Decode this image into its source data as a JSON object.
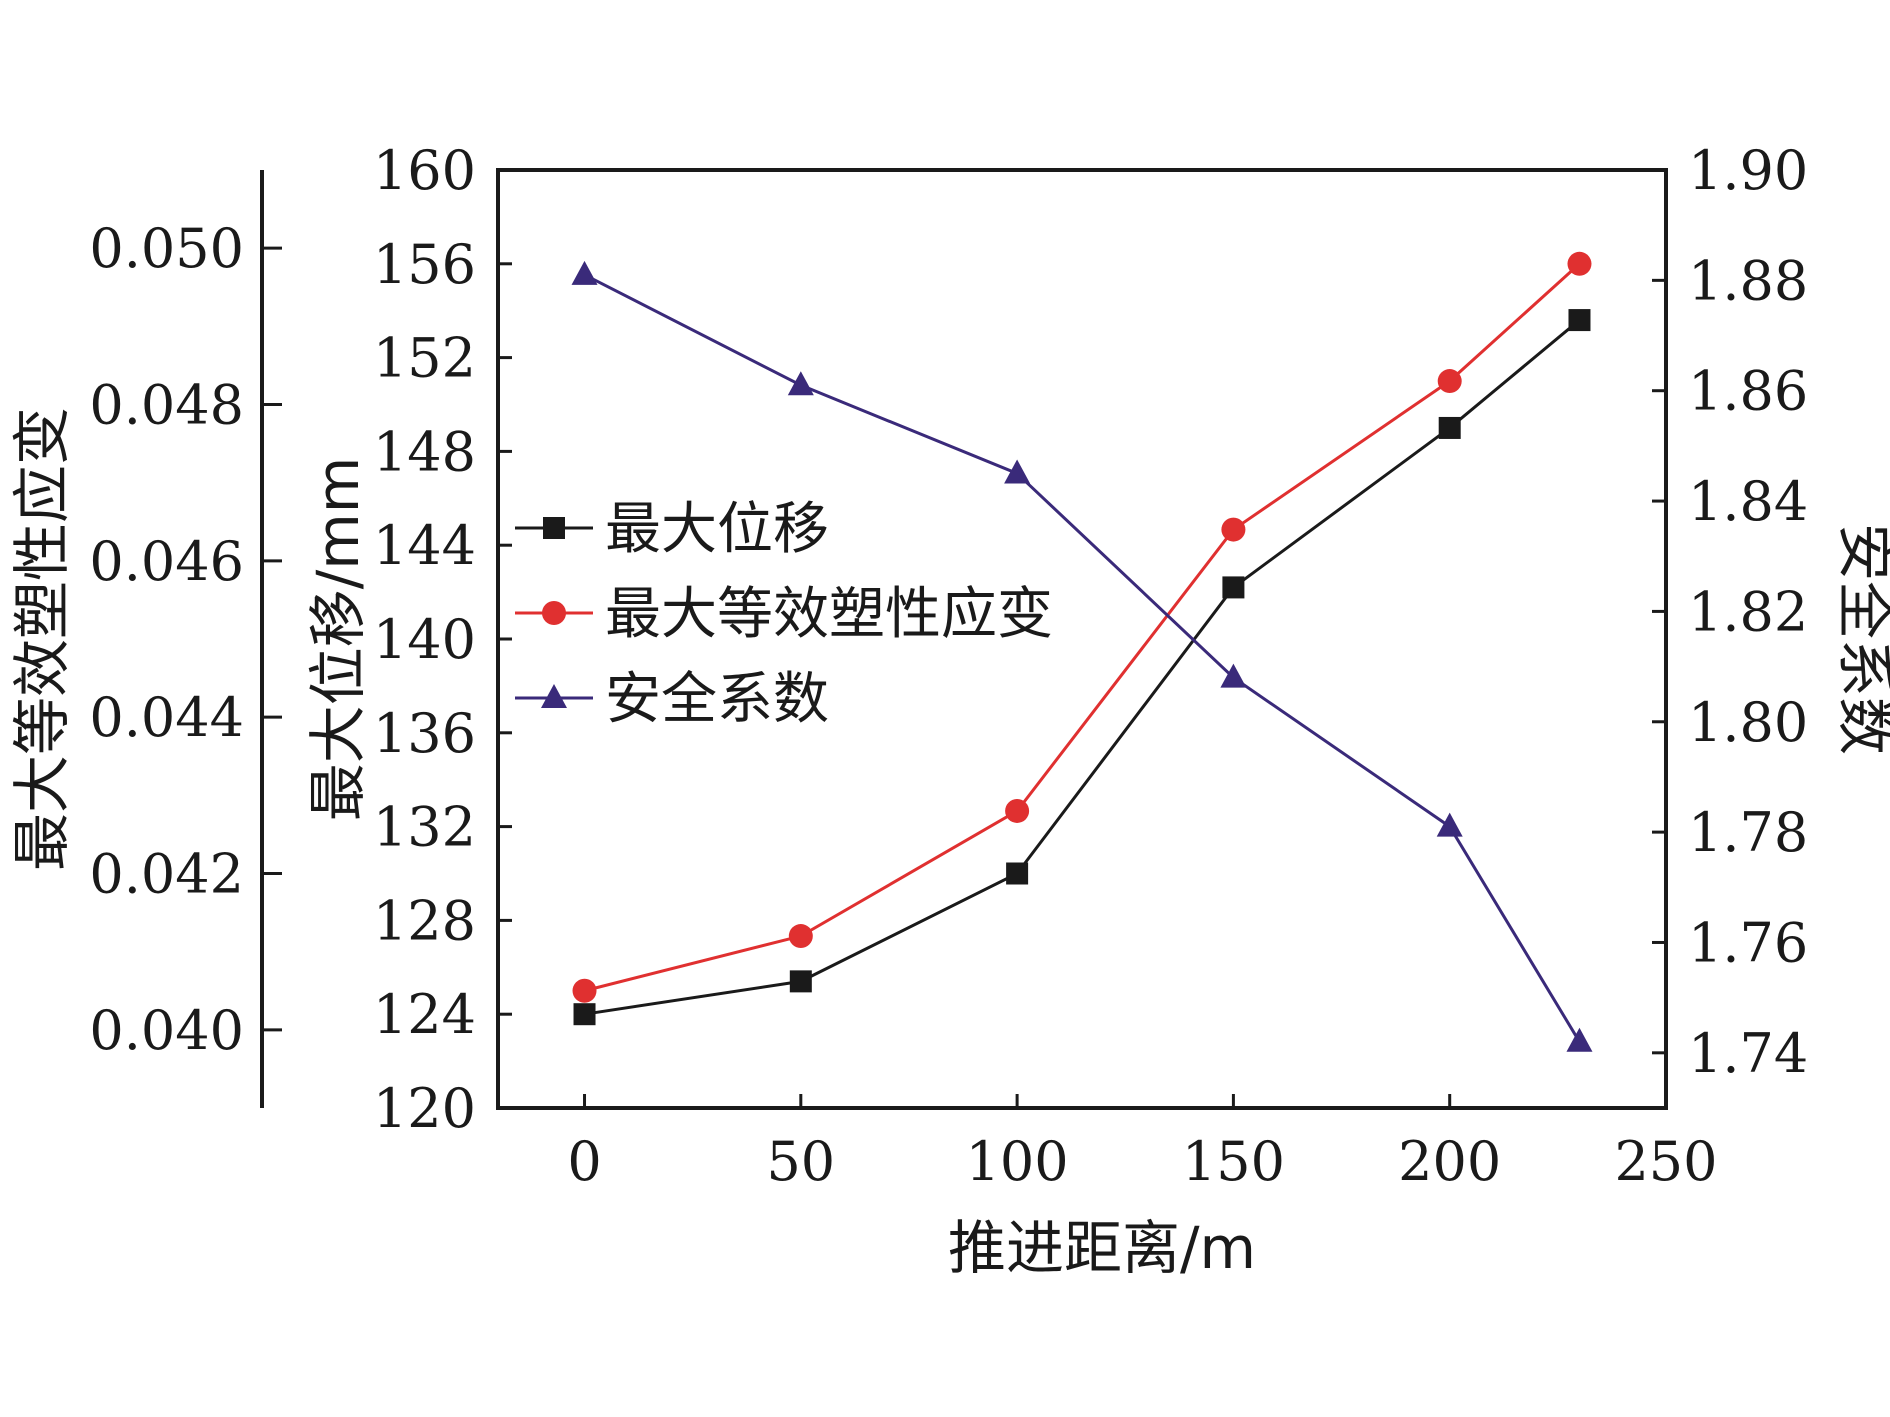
{
  "chart_data": {
    "type": "line",
    "x": [
      0,
      50,
      100,
      150,
      200,
      230
    ],
    "xlabel": "推进距离/m",
    "xlim": [
      -20,
      250
    ],
    "xticks": [
      0,
      50,
      100,
      150,
      200,
      250
    ],
    "axes": {
      "left_outer": {
        "label": "最大等效塑性应变",
        "range": [
          0.039,
          0.051
        ],
        "ticks": [
          "0.040",
          "0.042",
          "0.044",
          "0.046",
          "0.048",
          "0.050"
        ]
      },
      "left_inner": {
        "label": "最大位移/mm",
        "range": [
          120,
          160
        ],
        "ticks": [
          "120",
          "124",
          "128",
          "132",
          "136",
          "140",
          "144",
          "148",
          "152",
          "156",
          "160"
        ]
      },
      "right": {
        "label": "安全系数",
        "range": [
          1.73,
          1.9
        ],
        "ticks": [
          "1.74",
          "1.76",
          "1.78",
          "1.80",
          "1.82",
          "1.84",
          "1.86",
          "1.88",
          "1.90"
        ]
      }
    },
    "series": [
      {
        "name": "最大位移",
        "axis": "left_inner",
        "marker": "square",
        "color": "#1a1a1a",
        "values": [
          124.0,
          125.4,
          130.0,
          142.2,
          149.0,
          153.6
        ]
      },
      {
        "name": "最大等效塑性应变",
        "axis": "left_outer",
        "marker": "circle",
        "color": "#e03030",
        "values": [
          0.0405,
          0.0412,
          0.0428,
          0.0464,
          0.0483,
          0.0498
        ]
      },
      {
        "name": "安全系数",
        "axis": "right",
        "marker": "triangle",
        "color": "#3a2a7a",
        "values": [
          1.881,
          1.861,
          1.845,
          1.808,
          1.781,
          1.742
        ]
      }
    ],
    "legend": "left-center"
  }
}
